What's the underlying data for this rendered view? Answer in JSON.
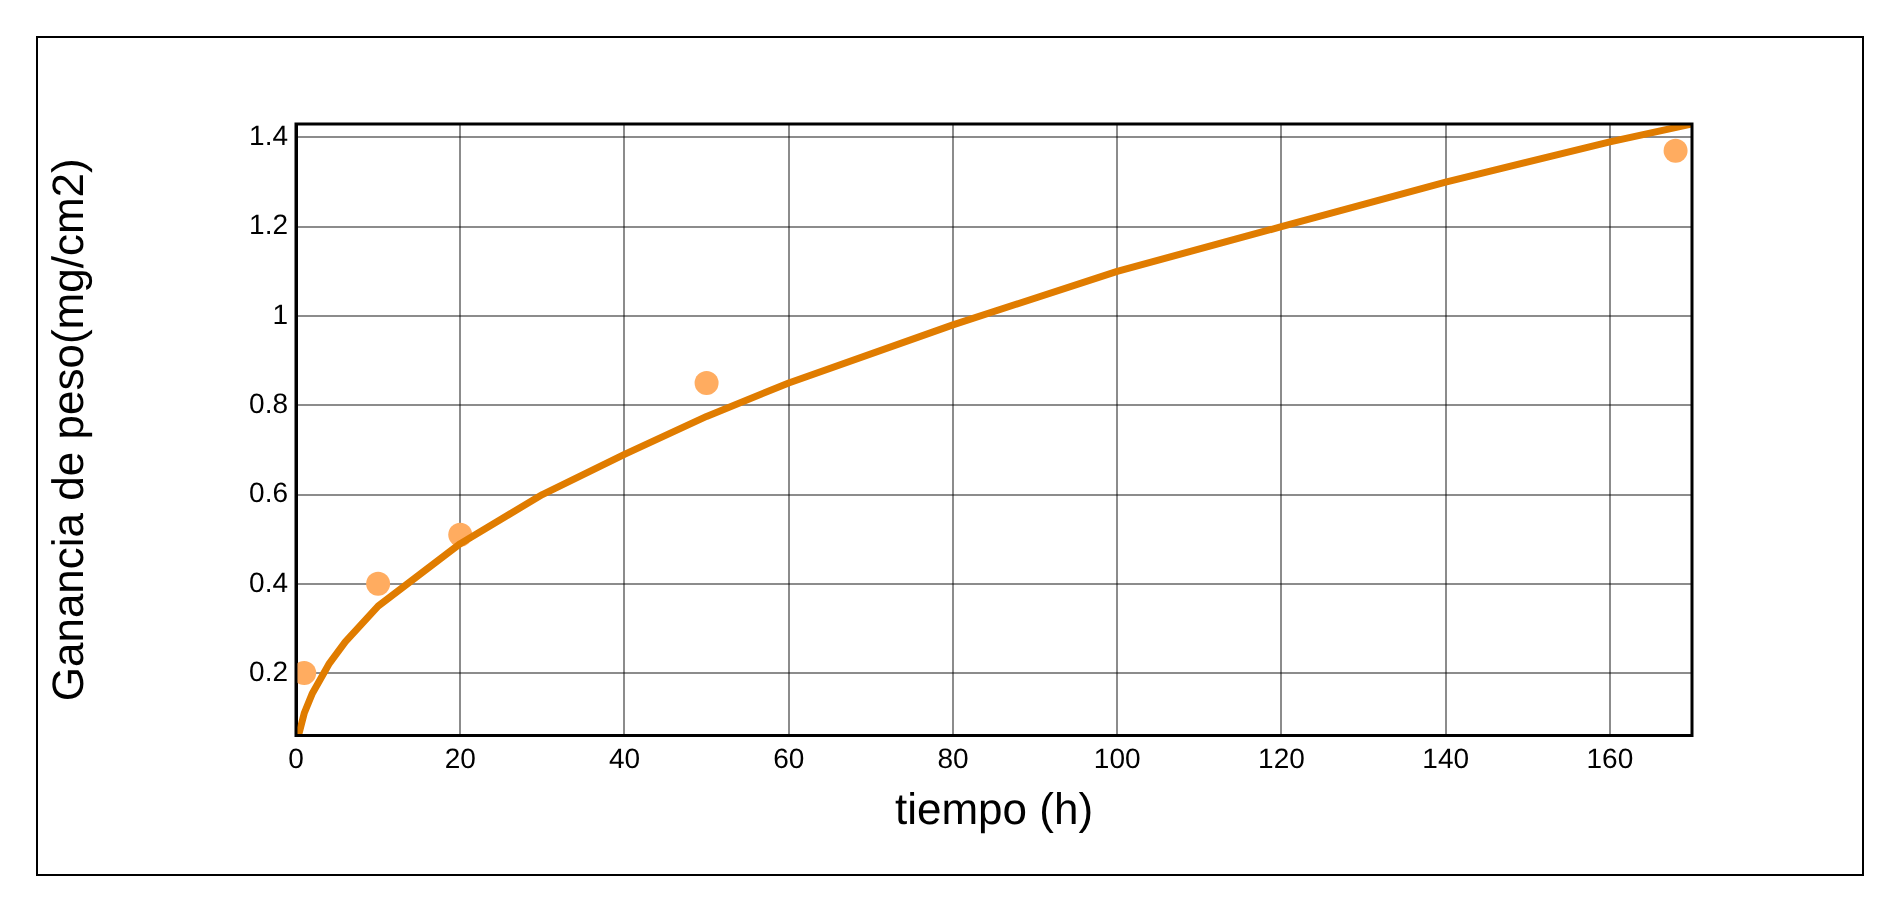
{
  "chart_data": {
    "type": "scatter",
    "xlabel": "tiempo (h)",
    "ylabel": "Ganancia de peso(mg/cm2)",
    "xlim": [
      0,
      170
    ],
    "xticks": [
      0,
      20,
      40,
      60,
      80,
      100,
      120,
      140,
      160
    ],
    "ylim": [
      0.06,
      1.43
    ],
    "yticks": [
      0.2,
      0.4,
      0.6,
      0.8,
      1,
      1.2,
      1.4
    ],
    "grid": true,
    "legend": false,
    "series": [
      {
        "color": "#ffac60",
        "marker": "circle",
        "x": [
          1,
          10,
          20,
          50,
          168
        ],
        "values": [
          0.2,
          0.4,
          0.51,
          0.85,
          1.37
        ]
      },
      {
        "type": "line",
        "color": "#e07c00",
        "marker": "none",
        "line_style": "solid",
        "x": [
          0.3,
          1,
          2,
          4,
          6,
          10,
          15,
          20,
          30,
          40,
          50,
          60,
          80,
          100,
          120,
          140,
          160,
          170
        ],
        "values": [
          0.06,
          0.11,
          0.155,
          0.22,
          0.27,
          0.35,
          0.42,
          0.49,
          0.6,
          0.69,
          0.775,
          0.85,
          0.98,
          1.1,
          1.2,
          1.3,
          1.39,
          1.43
        ]
      }
    ]
  }
}
